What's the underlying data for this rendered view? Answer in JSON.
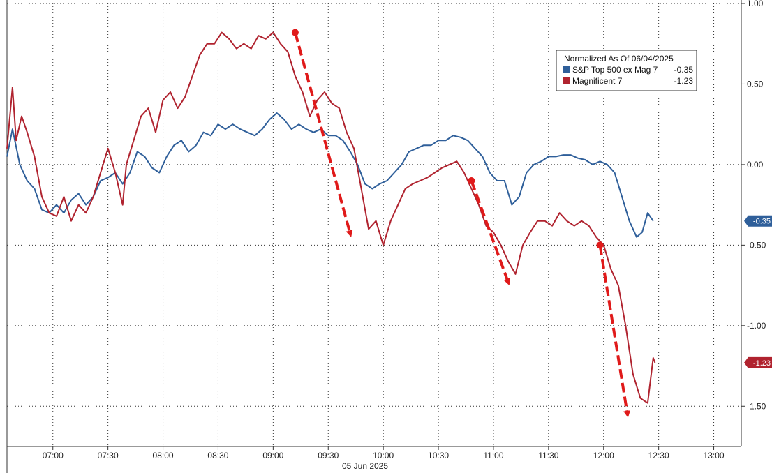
{
  "chart_data": {
    "type": "line",
    "date_label": "05 Jun 2025",
    "legend_title": "Normalized As Of 06/04/2025",
    "x_ticks": [
      "07:00",
      "07:30",
      "08:00",
      "08:30",
      "09:00",
      "09:30",
      "10:00",
      "10:30",
      "11:00",
      "11:30",
      "12:00",
      "12:30",
      "13:00"
    ],
    "y_ticks": [
      "1.00",
      "0.50",
      "0.00",
      "-0.50",
      "-1.00",
      "-1.50"
    ],
    "ylim": [
      -1.75,
      1.0
    ],
    "xlim": [
      "06:35",
      "13:15"
    ],
    "grid": true,
    "legend_position": "top-right",
    "colors": {
      "blue": "#2f5f9a",
      "red": "#b0232f",
      "arrow": "#e01a1a",
      "label_bg": "#2f5f9a",
      "label_bg_red": "#b0232f"
    },
    "series": [
      {
        "name": "S&P Top 500 ex Mag 7",
        "legend_value": "-0.35",
        "last_label": "-0.35",
        "color": "#2f5f9a",
        "points": [
          [
            "06:35",
            0.05
          ],
          [
            "06:38",
            0.22
          ],
          [
            "06:42",
            0.0
          ],
          [
            "06:46",
            -0.1
          ],
          [
            "06:50",
            -0.15
          ],
          [
            "06:54",
            -0.28
          ],
          [
            "06:58",
            -0.3
          ],
          [
            "07:02",
            -0.25
          ],
          [
            "07:06",
            -0.3
          ],
          [
            "07:10",
            -0.22
          ],
          [
            "07:14",
            -0.18
          ],
          [
            "07:18",
            -0.25
          ],
          [
            "07:22",
            -0.2
          ],
          [
            "07:26",
            -0.1
          ],
          [
            "07:30",
            -0.08
          ],
          [
            "07:34",
            -0.05
          ],
          [
            "07:38",
            -0.12
          ],
          [
            "07:42",
            -0.05
          ],
          [
            "07:46",
            0.08
          ],
          [
            "07:50",
            0.05
          ],
          [
            "07:54",
            -0.02
          ],
          [
            "07:58",
            -0.05
          ],
          [
            "08:02",
            0.05
          ],
          [
            "08:06",
            0.12
          ],
          [
            "08:10",
            0.15
          ],
          [
            "08:14",
            0.08
          ],
          [
            "08:18",
            0.12
          ],
          [
            "08:22",
            0.2
          ],
          [
            "08:26",
            0.18
          ],
          [
            "08:30",
            0.25
          ],
          [
            "08:34",
            0.22
          ],
          [
            "08:38",
            0.25
          ],
          [
            "08:42",
            0.22
          ],
          [
            "08:46",
            0.2
          ],
          [
            "08:50",
            0.18
          ],
          [
            "08:54",
            0.22
          ],
          [
            "08:58",
            0.28
          ],
          [
            "09:02",
            0.32
          ],
          [
            "09:06",
            0.28
          ],
          [
            "09:10",
            0.22
          ],
          [
            "09:14",
            0.25
          ],
          [
            "09:18",
            0.22
          ],
          [
            "09:22",
            0.2
          ],
          [
            "09:26",
            0.22
          ],
          [
            "09:30",
            0.18
          ],
          [
            "09:34",
            0.18
          ],
          [
            "09:38",
            0.15
          ],
          [
            "09:42",
            0.08
          ],
          [
            "09:46",
            0.0
          ],
          [
            "09:50",
            -0.12
          ],
          [
            "09:54",
            -0.15
          ],
          [
            "09:58",
            -0.12
          ],
          [
            "10:02",
            -0.1
          ],
          [
            "10:06",
            -0.05
          ],
          [
            "10:10",
            0.0
          ],
          [
            "10:14",
            0.08
          ],
          [
            "10:18",
            0.1
          ],
          [
            "10:22",
            0.12
          ],
          [
            "10:26",
            0.12
          ],
          [
            "10:30",
            0.15
          ],
          [
            "10:34",
            0.15
          ],
          [
            "10:38",
            0.18
          ],
          [
            "10:42",
            0.17
          ],
          [
            "10:46",
            0.15
          ],
          [
            "10:50",
            0.1
          ],
          [
            "10:54",
            0.05
          ],
          [
            "10:58",
            -0.05
          ],
          [
            "11:02",
            -0.1
          ],
          [
            "11:06",
            -0.1
          ],
          [
            "11:10",
            -0.25
          ],
          [
            "11:14",
            -0.2
          ],
          [
            "11:18",
            -0.05
          ],
          [
            "11:22",
            0.0
          ],
          [
            "11:26",
            0.02
          ],
          [
            "11:30",
            0.05
          ],
          [
            "11:34",
            0.05
          ],
          [
            "11:38",
            0.06
          ],
          [
            "11:42",
            0.06
          ],
          [
            "11:46",
            0.04
          ],
          [
            "11:50",
            0.03
          ],
          [
            "11:54",
            0.0
          ],
          [
            "11:58",
            0.02
          ],
          [
            "12:02",
            0.0
          ],
          [
            "12:06",
            -0.05
          ],
          [
            "12:10",
            -0.2
          ],
          [
            "12:14",
            -0.35
          ],
          [
            "12:18",
            -0.45
          ],
          [
            "12:21",
            -0.42
          ],
          [
            "12:24",
            -0.3
          ],
          [
            "12:27",
            -0.35
          ]
        ]
      },
      {
        "name": "Magnificent 7",
        "legend_value": "-1.23",
        "last_label": "-1.23",
        "color": "#b0232f",
        "points": [
          [
            "06:35",
            0.1
          ],
          [
            "06:38",
            0.48
          ],
          [
            "06:40",
            0.15
          ],
          [
            "06:43",
            0.3
          ],
          [
            "06:46",
            0.2
          ],
          [
            "06:50",
            0.05
          ],
          [
            "06:54",
            -0.2
          ],
          [
            "06:58",
            -0.3
          ],
          [
            "07:02",
            -0.32
          ],
          [
            "07:06",
            -0.2
          ],
          [
            "07:10",
            -0.35
          ],
          [
            "07:14",
            -0.25
          ],
          [
            "07:18",
            -0.3
          ],
          [
            "07:22",
            -0.2
          ],
          [
            "07:26",
            -0.05
          ],
          [
            "07:30",
            0.1
          ],
          [
            "07:34",
            -0.05
          ],
          [
            "07:38",
            -0.25
          ],
          [
            "07:40",
            0.0
          ],
          [
            "07:44",
            0.15
          ],
          [
            "07:48",
            0.3
          ],
          [
            "07:52",
            0.35
          ],
          [
            "07:56",
            0.2
          ],
          [
            "08:00",
            0.4
          ],
          [
            "08:04",
            0.45
          ],
          [
            "08:08",
            0.35
          ],
          [
            "08:12",
            0.42
          ],
          [
            "08:16",
            0.55
          ],
          [
            "08:20",
            0.68
          ],
          [
            "08:24",
            0.75
          ],
          [
            "08:28",
            0.75
          ],
          [
            "08:32",
            0.82
          ],
          [
            "08:36",
            0.78
          ],
          [
            "08:40",
            0.72
          ],
          [
            "08:44",
            0.75
          ],
          [
            "08:48",
            0.72
          ],
          [
            "08:52",
            0.8
          ],
          [
            "08:56",
            0.78
          ],
          [
            "09:00",
            0.82
          ],
          [
            "09:04",
            0.75
          ],
          [
            "09:08",
            0.7
          ],
          [
            "09:12",
            0.55
          ],
          [
            "09:16",
            0.45
          ],
          [
            "09:20",
            0.3
          ],
          [
            "09:24",
            0.4
          ],
          [
            "09:28",
            0.45
          ],
          [
            "09:32",
            0.38
          ],
          [
            "09:36",
            0.35
          ],
          [
            "09:40",
            0.2
          ],
          [
            "09:44",
            0.1
          ],
          [
            "09:48",
            -0.15
          ],
          [
            "09:52",
            -0.4
          ],
          [
            "09:56",
            -0.35
          ],
          [
            "10:00",
            -0.5
          ],
          [
            "10:04",
            -0.35
          ],
          [
            "10:08",
            -0.25
          ],
          [
            "10:12",
            -0.15
          ],
          [
            "10:16",
            -0.12
          ],
          [
            "10:20",
            -0.1
          ],
          [
            "10:24",
            -0.08
          ],
          [
            "10:28",
            -0.05
          ],
          [
            "10:32",
            -0.02
          ],
          [
            "10:36",
            0.0
          ],
          [
            "10:40",
            0.02
          ],
          [
            "10:44",
            -0.05
          ],
          [
            "10:48",
            -0.15
          ],
          [
            "10:52",
            -0.25
          ],
          [
            "10:56",
            -0.38
          ],
          [
            "11:00",
            -0.42
          ],
          [
            "11:04",
            -0.5
          ],
          [
            "11:08",
            -0.6
          ],
          [
            "11:12",
            -0.68
          ],
          [
            "11:16",
            -0.5
          ],
          [
            "11:20",
            -0.42
          ],
          [
            "11:24",
            -0.35
          ],
          [
            "11:28",
            -0.35
          ],
          [
            "11:32",
            -0.38
          ],
          [
            "11:36",
            -0.3
          ],
          [
            "11:40",
            -0.35
          ],
          [
            "11:44",
            -0.38
          ],
          [
            "11:48",
            -0.35
          ],
          [
            "11:52",
            -0.38
          ],
          [
            "11:56",
            -0.45
          ],
          [
            "12:00",
            -0.5
          ],
          [
            "12:04",
            -0.65
          ],
          [
            "12:08",
            -0.75
          ],
          [
            "12:12",
            -1.0
          ],
          [
            "12:16",
            -1.3
          ],
          [
            "12:20",
            -1.45
          ],
          [
            "12:24",
            -1.48
          ],
          [
            "12:27",
            -1.2
          ],
          [
            "12:28",
            -1.23
          ]
        ]
      }
    ],
    "annotations": [
      {
        "type": "arrow",
        "from": [
          "09:12",
          0.82
        ],
        "to": [
          "09:42",
          -0.43
        ]
      },
      {
        "type": "arrow",
        "from": [
          "10:48",
          -0.1
        ],
        "to": [
          "11:08",
          -0.73
        ]
      },
      {
        "type": "arrow",
        "from": [
          "11:58",
          -0.5
        ],
        "to": [
          "12:13",
          -1.55
        ]
      }
    ]
  }
}
